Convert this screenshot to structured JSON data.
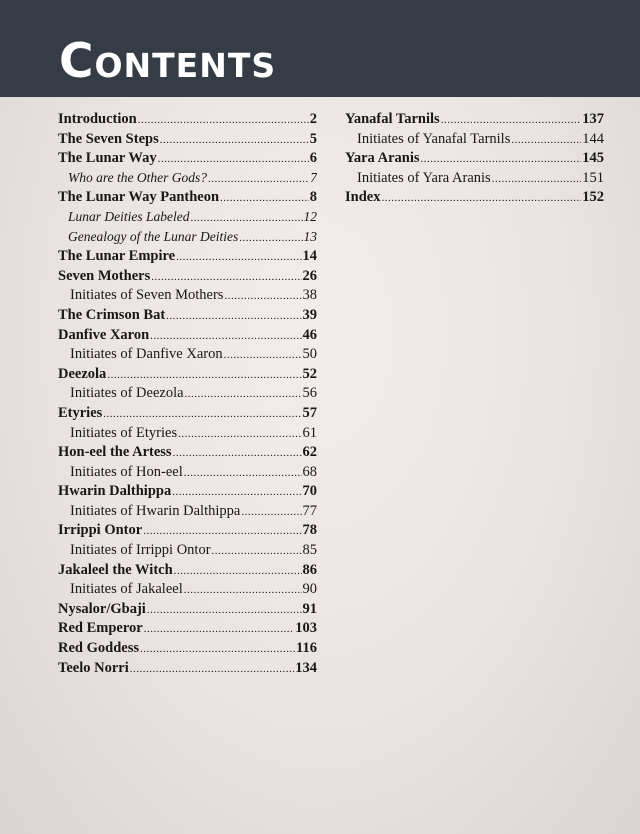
{
  "header": {
    "title": "Contents"
  },
  "left": [
    {
      "label": "Introduction",
      "page": "2",
      "level": "main"
    },
    {
      "label": "The Seven Steps",
      "page": "5",
      "level": "main"
    },
    {
      "label": "The Lunar Way",
      "page": "6",
      "level": "main"
    },
    {
      "label": "Who are the Other Gods?",
      "page": "7",
      "level": "ital"
    },
    {
      "label": "The Lunar Way Pantheon",
      "page": "8",
      "level": "main"
    },
    {
      "label": "Lunar Deities Labeled",
      "page": "12",
      "level": "ital"
    },
    {
      "label": "Genealogy of the Lunar Deities",
      "page": "13",
      "level": "ital"
    },
    {
      "label": "The Lunar Empire",
      "page": "14",
      "level": "main"
    },
    {
      "label": "Seven Mothers",
      "page": "26",
      "level": "main"
    },
    {
      "label": "Initiates of Seven Mothers",
      "page": "38",
      "level": "sub"
    },
    {
      "label": "The Crimson Bat",
      "page": "39",
      "level": "main"
    },
    {
      "label": "Danfive Xaron",
      "page": "46",
      "level": "main"
    },
    {
      "label": "Initiates of Danfive Xaron",
      "page": "50",
      "level": "sub"
    },
    {
      "label": "Deezola",
      "page": "52",
      "level": "main"
    },
    {
      "label": "Initiates of Deezola",
      "page": "56",
      "level": "sub"
    },
    {
      "label": "Etyries",
      "page": "57",
      "level": "main"
    },
    {
      "label": "Initiates of Etyries",
      "page": "61",
      "level": "sub"
    },
    {
      "label": "Hon-eel the Artess",
      "page": "62",
      "level": "main"
    },
    {
      "label": "Initiates of Hon-eel",
      "page": "68",
      "level": "sub"
    },
    {
      "label": "Hwarin Dalthippa",
      "page": "70",
      "level": "main"
    },
    {
      "label": "Initiates of Hwarin Dalthippa",
      "page": "77",
      "level": "sub"
    },
    {
      "label": "Irrippi Ontor",
      "page": "78",
      "level": "main"
    },
    {
      "label": "Initiates of Irrippi Ontor",
      "page": "85",
      "level": "sub"
    },
    {
      "label": "Jakaleel the Witch",
      "page": "86",
      "level": "main"
    },
    {
      "label": "Initiates of Jakaleel",
      "page": "90",
      "level": "sub"
    },
    {
      "label": "Nysalor/Gbaji",
      "page": "91",
      "level": "main"
    },
    {
      "label": "Red Emperor",
      "page": "103",
      "level": "main"
    },
    {
      "label": "Red Goddess",
      "page": "116",
      "level": "main"
    },
    {
      "label": "Teelo Norri",
      "page": "134",
      "level": "main"
    }
  ],
  "right": [
    {
      "label": "Yanafal Tarnils",
      "page": "137",
      "level": "main"
    },
    {
      "label": "Initiates of Yanafal Tarnils",
      "page": "144",
      "level": "sub"
    },
    {
      "label": "Yara Aranis",
      "page": "145",
      "level": "main"
    },
    {
      "label": "Initiates of Yara Aranis",
      "page": "151",
      "level": "sub"
    },
    {
      "label": "Index",
      "page": "152",
      "level": "main"
    }
  ]
}
